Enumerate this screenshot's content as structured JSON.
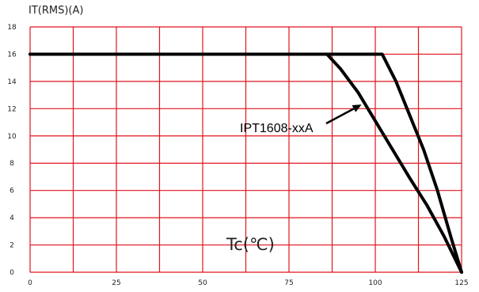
{
  "chart_data": {
    "type": "line",
    "ylabel": "IT(RMS)(A)",
    "xlabel": "Tc(℃)",
    "xlim": [
      0,
      125
    ],
    "ylim": [
      0,
      18
    ],
    "x_ticks": [
      "0",
      "25",
      "50",
      "75",
      "100",
      "125"
    ],
    "y_ticks": [
      "0",
      "2",
      "4",
      "6",
      "8",
      "10",
      "12",
      "14",
      "16",
      "18"
    ],
    "grid": true,
    "grid_color": "#e0141e",
    "line_color": "#000000",
    "series": [
      {
        "x": [
          0,
          102,
          106,
          110,
          114,
          118,
          122,
          125
        ],
        "y": [
          16,
          16,
          14,
          11.5,
          9,
          6,
          2.5,
          0
        ]
      },
      {
        "x": [
          0,
          86,
          90,
          95,
          100,
          105,
          110,
          115,
          120,
          125
        ],
        "y": [
          16,
          16,
          14.9,
          13.2,
          11.1,
          9,
          6.9,
          4.9,
          2.6,
          0
        ]
      }
    ],
    "annotation": {
      "text": "IPT1608-xxA",
      "arrow_to": {
        "x": 96,
        "y": 12.3
      }
    }
  }
}
